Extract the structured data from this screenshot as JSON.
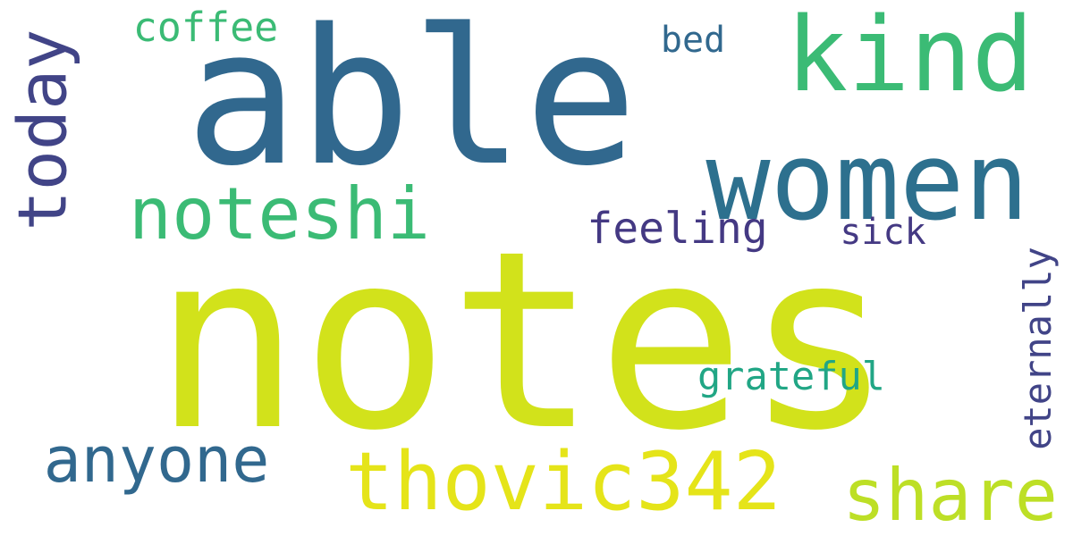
{
  "words": [
    {
      "text": "notes",
      "color": "#d2e21b"
    },
    {
      "text": "able",
      "color": "#31688e"
    },
    {
      "text": "kind",
      "color": "#3bbb75"
    },
    {
      "text": "women",
      "color": "#2d708e"
    },
    {
      "text": "noteshi",
      "color": "#3bbb75"
    },
    {
      "text": "today",
      "color": "#414487"
    },
    {
      "text": "anyone",
      "color": "#31688e"
    },
    {
      "text": "thovic342",
      "color": "#e5e419"
    },
    {
      "text": "share",
      "color": "#bddf26"
    },
    {
      "text": "coffee",
      "color": "#3bbb75"
    },
    {
      "text": "bed",
      "color": "#31688e"
    },
    {
      "text": "feeling",
      "color": "#443983"
    },
    {
      "text": "sick",
      "color": "#443983"
    },
    {
      "text": "eternally",
      "color": "#414487"
    },
    {
      "text": "grateful",
      "color": "#21a685"
    }
  ]
}
